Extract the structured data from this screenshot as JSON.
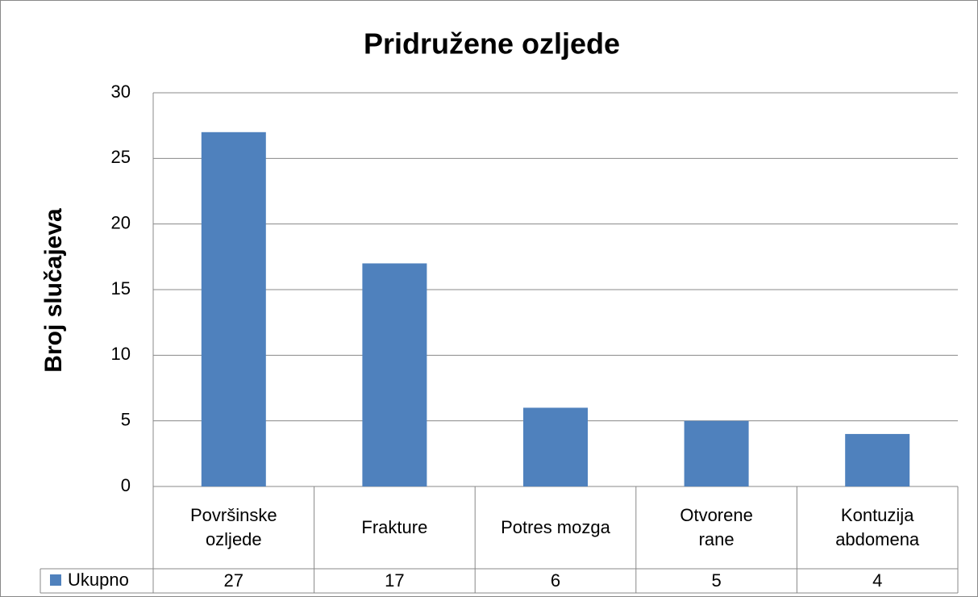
{
  "chart_data": {
    "type": "bar",
    "title": "Pridružene ozljede",
    "y_label": "Broj slučajeva",
    "categories": [
      "Površinske ozljede",
      "Frakture",
      "Potres mozga",
      "Otvorene rane",
      "Kontuzija abdomena"
    ],
    "series": [
      {
        "name": "Ukupno",
        "color": "#4f81bd",
        "values": [
          27,
          17,
          6,
          5,
          4
        ]
      }
    ],
    "ylim": [
      0,
      30
    ],
    "yticks": [
      0,
      5,
      10,
      15,
      20,
      25,
      30
    ],
    "grid": true,
    "data_table": true
  }
}
